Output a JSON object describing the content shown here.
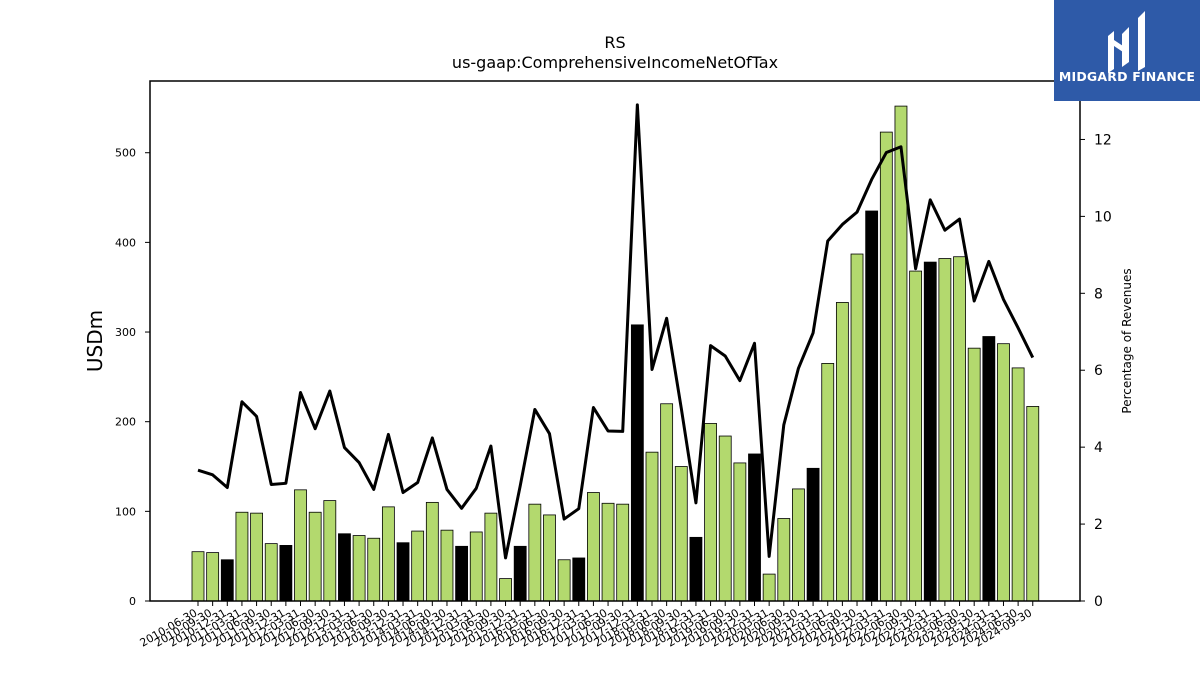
{
  "logo": {
    "text": "MIDGARD FINANCE",
    "color": "#2e5aa8"
  },
  "chart_data": {
    "type": "bar",
    "title": "RS",
    "subtitle": "us-gaap:ComprehensiveIncomeNetOfTax",
    "ylabel": "USDm",
    "y2label": "Percentage of Revenues",
    "ylim": [
      0,
      580
    ],
    "y2lim": [
      0,
      13.52
    ],
    "yticks": [
      0,
      100,
      200,
      300,
      400,
      500
    ],
    "y2ticks": [
      0,
      2,
      4,
      6,
      8,
      10,
      12
    ],
    "colors": {
      "quarter": "#b3d96e",
      "fiscal_year": "#000000",
      "line": "#000000"
    },
    "categories": [
      "2010-06-30",
      "2010-09-30",
      "2010-12-31",
      "2011-03-31",
      "2011-06-30",
      "2011-09-30",
      "2011-12-31",
      "2012-03-31",
      "2012-06-30",
      "2012-09-30",
      "2012-12-31",
      "2013-03-31",
      "2013-06-30",
      "2013-09-30",
      "2013-12-31",
      "2014-03-31",
      "2014-06-30",
      "2014-09-30",
      "2014-12-31",
      "2015-03-31",
      "2015-06-30",
      "2015-09-30",
      "2015-12-31",
      "2016-03-31",
      "2016-06-30",
      "2016-09-30",
      "2016-12-31",
      "2017-03-31",
      "2017-06-30",
      "2017-09-30",
      "2017-12-31",
      "2018-03-31",
      "2018-06-30",
      "2018-09-30",
      "2018-12-31",
      "2019-03-31",
      "2019-06-30",
      "2019-09-30",
      "2019-12-31",
      "2020-03-31",
      "2020-06-30",
      "2020-09-30",
      "2020-12-31",
      "2021-03-31",
      "2021-06-30",
      "2021-09-30",
      "2021-12-31",
      "2022-03-31",
      "2022-06-30",
      "2022-09-30",
      "2022-12-31",
      "2023-03-31",
      "2023-06-30",
      "2023-09-30",
      "2023-12-31",
      "2024-03-31",
      "2024-06-30",
      "2024-09-30"
    ],
    "series": [
      {
        "kind": "bar",
        "values": [
          55,
          54,
          46,
          99,
          98,
          64,
          62,
          124,
          99,
          112,
          75,
          73,
          70,
          105,
          65,
          78,
          110,
          79,
          61,
          77,
          98,
          25,
          61,
          108,
          96,
          46,
          48,
          121,
          109,
          108,
          308,
          166,
          220,
          150,
          71,
          198,
          184,
          154,
          164,
          30,
          92,
          125,
          148,
          265,
          333,
          387,
          435,
          523,
          552,
          368,
          378,
          382,
          384,
          282,
          295,
          287,
          260,
          217
        ],
        "fiscal_year": [
          false,
          false,
          true,
          false,
          false,
          false,
          true,
          false,
          false,
          false,
          true,
          false,
          false,
          false,
          true,
          false,
          false,
          false,
          true,
          false,
          false,
          false,
          true,
          false,
          false,
          false,
          true,
          false,
          false,
          false,
          true,
          false,
          false,
          false,
          true,
          false,
          false,
          false,
          true,
          false,
          false,
          false,
          true,
          false,
          false,
          false,
          true,
          false,
          false,
          false,
          true,
          false,
          false,
          false,
          true,
          false,
          false,
          false
        ]
      },
      {
        "kind": "line",
        "axis": "right",
        "values": [
          3.4,
          3.28,
          2.95,
          5.18,
          4.8,
          3.03,
          3.06,
          5.42,
          4.48,
          5.46,
          3.99,
          3.6,
          2.9,
          4.33,
          2.82,
          3.08,
          4.24,
          2.9,
          2.41,
          2.93,
          4.03,
          1.12,
          2.99,
          4.98,
          4.35,
          2.13,
          2.4,
          5.03,
          4.42,
          4.41,
          12.9,
          6.02,
          7.35,
          5.01,
          2.55,
          6.64,
          6.37,
          5.73,
          6.7,
          1.16,
          4.58,
          6.05,
          6.97,
          9.36,
          9.79,
          10.11,
          10.96,
          11.66,
          11.81,
          8.64,
          10.43,
          9.64,
          9.93,
          7.8,
          8.83,
          7.84,
          7.1,
          6.33
        ]
      }
    ],
    "grid": false,
    "legend": "none"
  }
}
